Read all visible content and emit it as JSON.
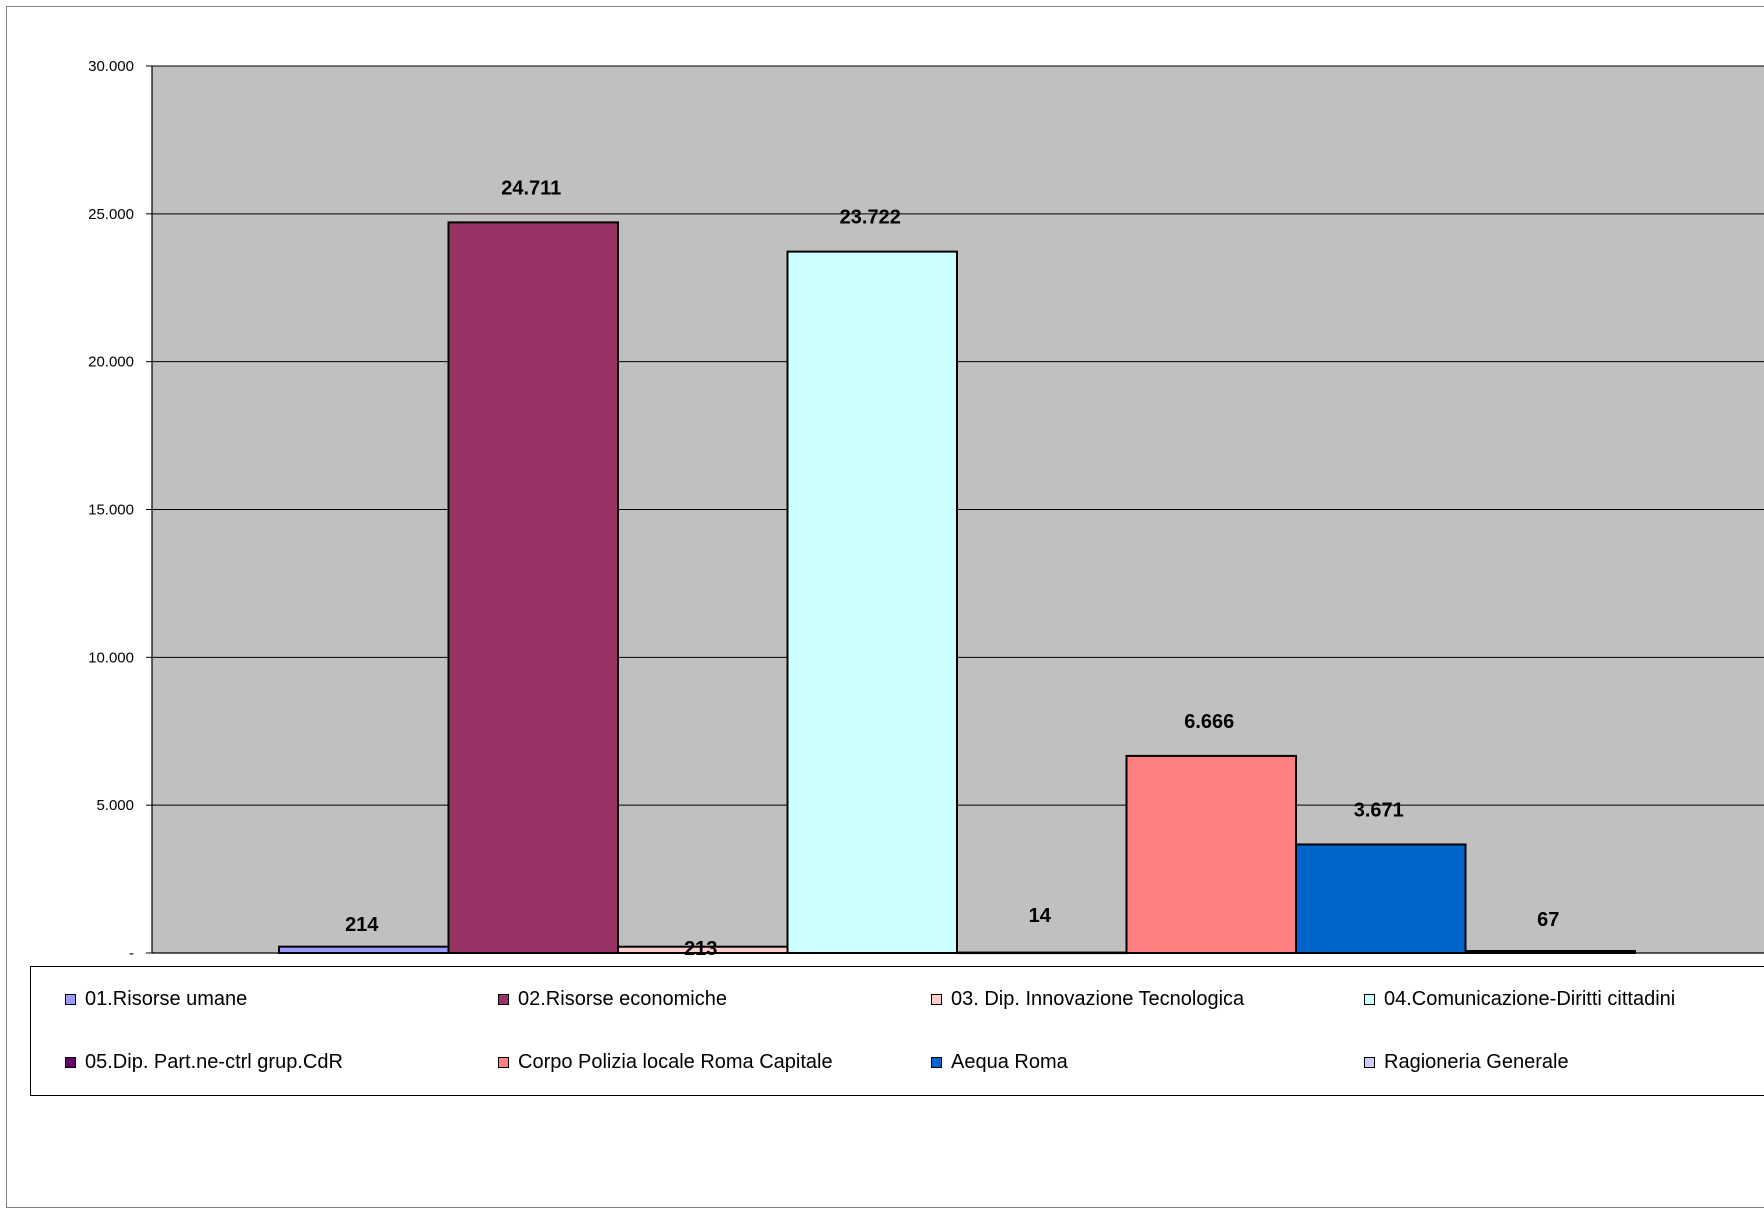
{
  "chart_data": {
    "type": "bar",
    "categories": [
      ""
    ],
    "ylim": [
      0,
      30000
    ],
    "yticks": [
      {
        "value": 0,
        "label": "-"
      },
      {
        "value": 5000,
        "label": "5.000"
      },
      {
        "value": 10000,
        "label": "10.000"
      },
      {
        "value": 15000,
        "label": "15.000"
      },
      {
        "value": 20000,
        "label": "20.000"
      },
      {
        "value": 25000,
        "label": "25.000"
      },
      {
        "value": 30000,
        "label": "30.000"
      }
    ],
    "grid": true,
    "legend_position": "bottom",
    "plot_background": "#c0c0c0",
    "series": [
      {
        "name": "01.Risorse umane",
        "value": 214,
        "label": "214",
        "color": "#9999ff"
      },
      {
        "name": "02.Risorse economiche",
        "value": 24711,
        "label": "24.711",
        "color": "#993366"
      },
      {
        "name": "03. Dip. Innovazione Tecnologica",
        "value": 213,
        "label": "213",
        "color": "#ffcccc"
      },
      {
        "name": "04.Comunicazione-Diritti cittadini",
        "value": 23722,
        "label": "23.722",
        "color": "#ccffff"
      },
      {
        "name": "05.Dip. Part.ne-ctrl grup.CdR",
        "value": 14,
        "label": "14",
        "color": "#660066"
      },
      {
        "name": "Corpo Polizia locale Roma Capitale",
        "value": 6666,
        "label": "6.666",
        "color": "#ff8080"
      },
      {
        "name": "Aequa Roma",
        "value": 3671,
        "label": "3.671",
        "color": "#0066cc"
      },
      {
        "name": "Ragioneria Generale",
        "value": 67,
        "label": "67",
        "color": "#ccccff"
      }
    ]
  }
}
